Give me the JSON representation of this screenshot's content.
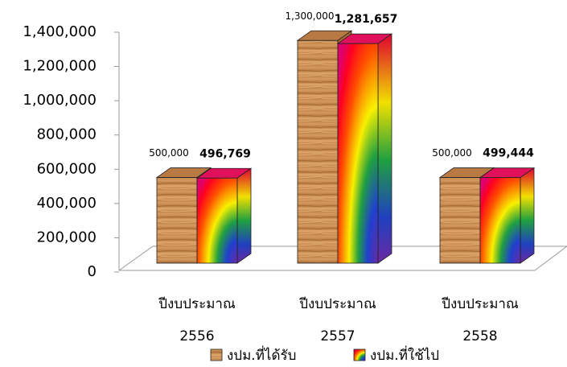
{
  "chart_data": {
    "type": "bar3d",
    "categories": [
      [
        "ปีงบประมาณ",
        "2556"
      ],
      [
        "ปีงบประมาณ",
        "2557"
      ],
      [
        "ปีงบประมาณ",
        "2558"
      ]
    ],
    "series": [
      {
        "name": "งปม.ที่ได้รับ",
        "color": "#c8874a",
        "values": [
          500000,
          1300000,
          500000
        ],
        "value_labels": [
          "500,000",
          "1,300,000",
          "500,000"
        ]
      },
      {
        "name": "งปม.ที่ใช้ไป",
        "color": "#ff2000",
        "values": [
          496769,
          1281657,
          499444
        ],
        "value_labels": [
          "496,769",
          "1,281,657",
          "499,444"
        ]
      }
    ],
    "ylim": [
      0,
      1400000
    ],
    "yticks": [
      0,
      {
        "value": 200000,
        "label": "200,000"
      },
      {
        "value": 400000,
        "label": "400,000"
      },
      {
        "value": 600000,
        "label": "600,000"
      },
      {
        "value": 800000,
        "label": "800,000"
      },
      {
        "value": 1000000,
        "label": "1,000,000"
      },
      {
        "value": 1200000,
        "label": "1,200,000"
      },
      {
        "value": 1400000,
        "label": "1,400,000"
      }
    ],
    "legend": "bottom"
  }
}
